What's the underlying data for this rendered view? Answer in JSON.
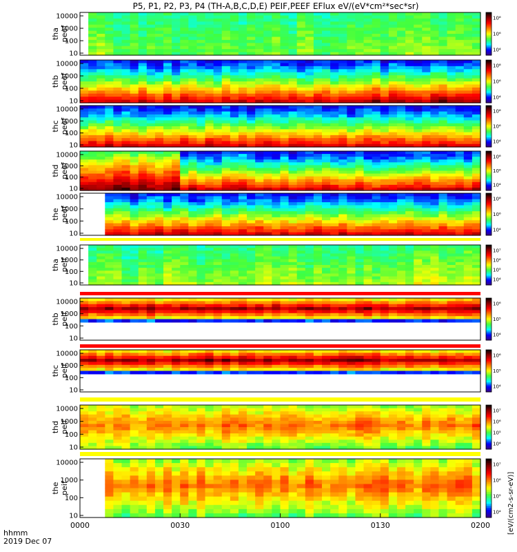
{
  "title": "P5, P1, P2, P3, P4 (TH-A,B,C,D,E) PEIF,PEEF EFlux eV/(eV*cm²*sec*sr)",
  "xaxis": {
    "ticks": [
      "0000",
      "0030",
      "0100",
      "0130",
      "0200"
    ],
    "label_line1": "hhmm",
    "label_line2": "2019 Dec 07"
  },
  "colorbar_units": "[eV/(cm2-s-sr-eV)]",
  "colormap": [
    "#3b0080",
    "#0000ff",
    "#00ffff",
    "#40ff40",
    "#ffff00",
    "#ff8000",
    "#ff0000",
    "#8b0000",
    "#000000"
  ],
  "chart_data": {
    "type": "heatmap",
    "x_range": [
      "0000",
      "0200"
    ],
    "y_scale": "log",
    "panels": [
      {
        "label_top": "tha",
        "label_bottom": "peef",
        "y_ticks": [
          "10000",
          "1000",
          "100",
          "10"
        ],
        "cbar_ticks": [
          "10⁸",
          "10⁶",
          "10⁴"
        ],
        "style": "peef",
        "missing_x_end": 0.02
      },
      {
        "label_top": "thb",
        "label_bottom": "peef",
        "y_ticks": [
          "10000",
          "1000",
          "100",
          "10"
        ],
        "cbar_ticks": [
          "10⁸",
          "10⁶",
          "10⁴"
        ],
        "style": "peef"
      },
      {
        "label_top": "thc",
        "label_bottom": "peef",
        "y_ticks": [
          "10000",
          "1000",
          "100",
          "10"
        ],
        "cbar_ticks": [
          "10⁸",
          "10⁶",
          "10⁴"
        ],
        "style": "peef"
      },
      {
        "label_top": "thd",
        "label_bottom": "peef",
        "y_ticks": [
          "10000",
          "1000",
          "100",
          "10"
        ],
        "cbar_ticks": [
          "10⁸",
          "10⁶",
          "10⁴"
        ],
        "style": "peef"
      },
      {
        "label_top": "the",
        "label_bottom": "peef",
        "y_ticks": [
          "10000",
          "1000",
          "100",
          "10"
        ],
        "cbar_ticks": [
          "10⁸",
          "10⁶",
          "10⁴"
        ],
        "style": "peef",
        "missing_x_end": 0.06
      },
      {
        "label_top": "tha",
        "label_bottom": "peif",
        "y_ticks": [
          "10000",
          "1000",
          "100",
          "10"
        ],
        "cbar_ticks": [
          "10⁷",
          "10⁶",
          "10⁵",
          "10⁴"
        ],
        "style": "peif",
        "missing_x_end": 0.02
      },
      {
        "label_top": "thb",
        "label_bottom": "peif",
        "y_ticks": [
          "10000",
          "1000",
          "100",
          "10"
        ],
        "cbar_ticks": [
          "10⁶",
          "10⁵",
          "10⁴"
        ],
        "style": "peif_band"
      },
      {
        "label_top": "thc",
        "label_bottom": "peif",
        "y_ticks": [
          "10000",
          "1000",
          "100",
          "10"
        ],
        "cbar_ticks": [
          "10⁶",
          "10⁵",
          "10⁴"
        ],
        "style": "peif_band"
      },
      {
        "label_top": "thd",
        "label_bottom": "peif",
        "y_ticks": [
          "10000",
          "1000",
          "100",
          "10"
        ],
        "cbar_ticks": [
          "10⁷",
          "10⁶",
          "10⁵",
          "10⁴"
        ],
        "style": "peif"
      },
      {
        "label_top": "the",
        "label_bottom": "peif",
        "y_ticks": [
          "10000",
          "1000",
          "100",
          "10"
        ],
        "cbar_ticks": [
          "10⁷",
          "10⁶",
          "10⁵",
          "10⁴"
        ],
        "style": "peif",
        "missing_x_end": 0.06
      }
    ]
  }
}
